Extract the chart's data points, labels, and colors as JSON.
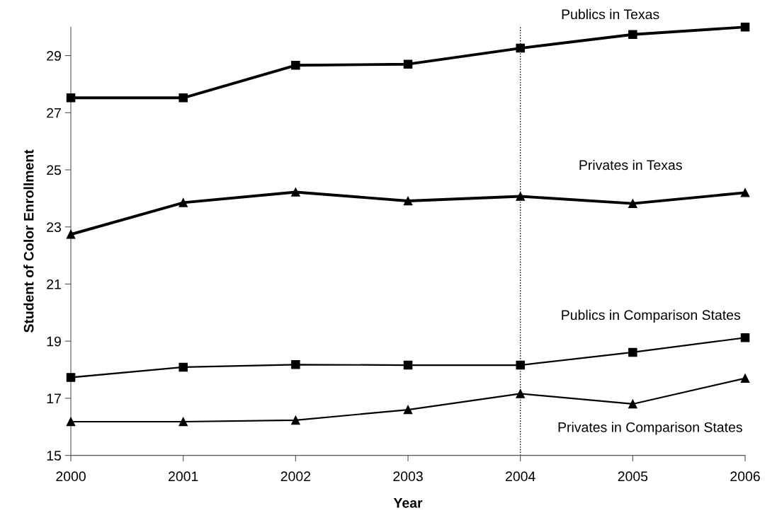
{
  "chart_data": {
    "type": "line",
    "xlabel": "Year",
    "ylabel": "Student of Color Enrollment",
    "x": [
      2000,
      2001,
      2002,
      2003,
      2004,
      2005,
      2006
    ],
    "xlim": [
      2000,
      2006
    ],
    "xticks": [
      2000,
      2001,
      2002,
      2003,
      2004,
      2005,
      2006
    ],
    "ylim": [
      15,
      30
    ],
    "yticks": [
      15,
      17,
      19,
      21,
      23,
      25,
      27,
      29
    ],
    "grid": false,
    "legend": false,
    "line_style": "solid",
    "series": [
      {
        "name": "Publics in Texas",
        "color": "#000000",
        "marker": "square",
        "values": [
          27.52,
          27.52,
          28.66,
          28.7,
          29.26,
          29.74,
          30.0
        ]
      },
      {
        "name": "Privates in Texas",
        "color": "#000000",
        "marker": "triangle",
        "values": [
          22.74,
          23.85,
          24.22,
          23.91,
          24.07,
          23.82,
          24.2
        ]
      },
      {
        "name": "Publics in Comparison States",
        "color": "#000000",
        "marker": "square",
        "values": [
          17.73,
          18.09,
          18.18,
          18.16,
          18.16,
          18.61,
          19.12
        ]
      },
      {
        "name": "Privates in Comparison States",
        "color": "#000000",
        "marker": "triangle",
        "values": [
          16.18,
          16.18,
          16.23,
          16.6,
          17.16,
          16.8,
          17.7
        ]
      }
    ],
    "ref_lines": [
      {
        "axis": "x",
        "value": 2004,
        "label": null,
        "color": "#000000",
        "line_style": "dotted"
      }
    ]
  }
}
